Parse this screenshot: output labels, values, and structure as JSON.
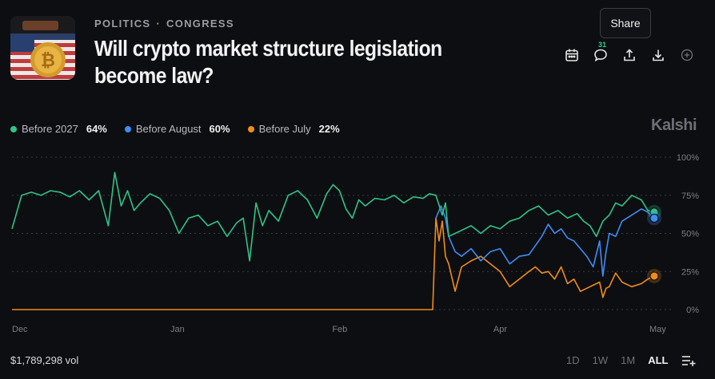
{
  "breadcrumb": {
    "category": "POLITICS",
    "separator": "·",
    "subcategory": "CONGRESS"
  },
  "title": "Will crypto market structure legislation become law?",
  "tooltip": "Share",
  "comment_count": "31",
  "brand": "Kalshi",
  "icons": [
    "calendar-icon",
    "comment-icon",
    "share-icon",
    "download-icon",
    "plus-circle-icon",
    "list-add-icon"
  ],
  "colors": {
    "before_2027": "#2fc48a",
    "before_august": "#3f8cf4",
    "before_july": "#f08c1a",
    "background": "#0d0e11"
  },
  "legend": [
    {
      "name": "Before 2027",
      "value": "64%"
    },
    {
      "name": "Before August",
      "value": "60%"
    },
    {
      "name": "Before July",
      "value": "22%"
    }
  ],
  "volume": "$1,789,298 vol",
  "ranges": [
    "1D",
    "1W",
    "1M",
    "ALL"
  ],
  "active_range": "ALL",
  "chart_data": {
    "type": "line",
    "x_tick_labels": [
      "Dec",
      "Jan",
      "Feb",
      "Apr",
      "May"
    ],
    "x_tick_pos": [
      0.0,
      0.254,
      0.506,
      0.757,
      1.0
    ],
    "y_tick_labels": [
      "100%",
      "75%",
      "50%",
      "25%",
      "0%"
    ],
    "ylim": [
      0,
      100
    ],
    "grid": true,
    "legend_position": "top-left",
    "series": [
      {
        "name": "Before 2027",
        "color": "#2fc48a",
        "x": [
          0.0,
          0.015,
          0.03,
          0.045,
          0.06,
          0.075,
          0.09,
          0.105,
          0.12,
          0.135,
          0.15,
          0.16,
          0.17,
          0.18,
          0.19,
          0.2,
          0.215,
          0.23,
          0.245,
          0.26,
          0.275,
          0.29,
          0.305,
          0.32,
          0.335,
          0.35,
          0.36,
          0.37,
          0.38,
          0.39,
          0.4,
          0.415,
          0.43,
          0.445,
          0.46,
          0.475,
          0.49,
          0.5,
          0.51,
          0.52,
          0.53,
          0.54,
          0.55,
          0.565,
          0.58,
          0.595,
          0.61,
          0.625,
          0.64,
          0.65,
          0.66,
          0.67,
          0.675,
          0.68,
          0.69,
          0.7,
          0.715,
          0.73,
          0.745,
          0.76,
          0.775,
          0.79,
          0.805,
          0.82,
          0.835,
          0.85,
          0.865,
          0.88,
          0.89,
          0.9,
          0.91,
          0.92,
          0.93,
          0.94,
          0.95,
          0.965,
          0.98,
          0.99,
          1.0
        ],
        "y": [
          53,
          75,
          77,
          75,
          78,
          77,
          74,
          78,
          72,
          78,
          55,
          90,
          68,
          78,
          65,
          70,
          76,
          73,
          65,
          50,
          60,
          62,
          55,
          58,
          48,
          57,
          60,
          32,
          70,
          55,
          65,
          58,
          75,
          78,
          72,
          60,
          76,
          82,
          78,
          66,
          60,
          72,
          68,
          73,
          72,
          75,
          70,
          74,
          73,
          76,
          75,
          62,
          70,
          48,
          50,
          52,
          55,
          50,
          55,
          53,
          58,
          60,
          65,
          68,
          62,
          65,
          60,
          63,
          58,
          55,
          48,
          58,
          62,
          70,
          68,
          75,
          72,
          65,
          64
        ]
      },
      {
        "name": "Before August",
        "color": "#3f8cf4",
        "x": [
          0.66,
          0.668,
          0.675,
          0.68,
          0.69,
          0.7,
          0.715,
          0.73,
          0.745,
          0.76,
          0.775,
          0.79,
          0.805,
          0.815,
          0.825,
          0.835,
          0.845,
          0.855,
          0.865,
          0.875,
          0.885,
          0.895,
          0.905,
          0.915,
          0.92,
          0.925,
          0.93,
          0.94,
          0.95,
          0.965,
          0.98,
          0.99,
          1.0
        ],
        "y": [
          60,
          68,
          60,
          48,
          38,
          35,
          40,
          32,
          38,
          40,
          30,
          35,
          36,
          42,
          48,
          56,
          50,
          53,
          47,
          45,
          40,
          35,
          28,
          45,
          22,
          38,
          50,
          48,
          58,
          62,
          66,
          64,
          60
        ]
      },
      {
        "name": "Before July",
        "color": "#f08c1a",
        "x": [
          0.0,
          0.655,
          0.66,
          0.665,
          0.67,
          0.675,
          0.68,
          0.69,
          0.7,
          0.715,
          0.73,
          0.745,
          0.76,
          0.775,
          0.79,
          0.805,
          0.815,
          0.825,
          0.835,
          0.845,
          0.855,
          0.865,
          0.875,
          0.885,
          0.895,
          0.905,
          0.915,
          0.92,
          0.925,
          0.93,
          0.94,
          0.95,
          0.965,
          0.98,
          0.99,
          1.0
        ],
        "y": [
          0,
          0,
          60,
          45,
          58,
          35,
          30,
          12,
          28,
          32,
          35,
          30,
          25,
          15,
          20,
          25,
          28,
          24,
          25,
          20,
          28,
          17,
          20,
          12,
          14,
          16,
          18,
          8,
          14,
          15,
          24,
          18,
          15,
          17,
          20,
          22
        ]
      }
    ]
  }
}
